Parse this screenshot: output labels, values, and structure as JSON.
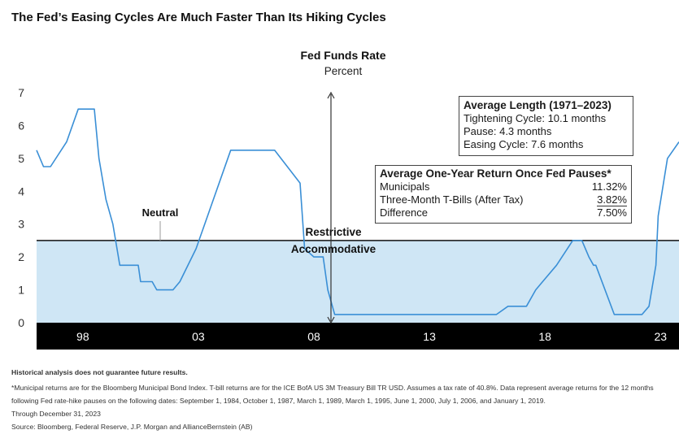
{
  "title": "The Fed’s Easing Cycles Are Much Faster Than Its Hiking Cycles",
  "chart_data": {
    "type": "area",
    "title": "Fed Funds Rate",
    "subtitle": "Percent",
    "xlim": [
      1996,
      2023.8
    ],
    "ylim": [
      0,
      7
    ],
    "yticks": [
      0,
      1,
      2,
      3,
      4,
      5,
      6,
      7
    ],
    "xtick_labels": [
      {
        "year": 1998,
        "label": "98"
      },
      {
        "year": 2003,
        "label": "03"
      },
      {
        "year": 2008,
        "label": "08"
      },
      {
        "year": 2013,
        "label": "13"
      },
      {
        "year": 2018,
        "label": "18"
      },
      {
        "year": 2023,
        "label": "23"
      }
    ],
    "neutral_level": 2.5,
    "labels": {
      "neutral": "Neutral",
      "restrictive": "Restrictive",
      "accommodative": "Accommodative"
    },
    "colors": {
      "line": "#3a8fd6",
      "accommodative_fill": "#cfe6f5",
      "axis_band": "#000000",
      "neutral_line": "#111111"
    },
    "series": [
      {
        "x": [
          1996.0,
          1996.3,
          1996.6,
          1997.3,
          1997.8,
          1998.5,
          1998.7,
          1999.0,
          1999.3,
          1999.6,
          1999.9,
          2000.4,
          2000.5,
          2001.0,
          2001.2,
          2001.7,
          2001.9,
          2002.2,
          2002.9,
          2003.4,
          2004.4,
          2005.0,
          2006.3,
          2007.4,
          2007.6,
          2008.0,
          2008.2,
          2008.4,
          2008.6,
          2008.9,
          2009.5,
          2015.9,
          2016.4,
          2016.9,
          2017.2,
          2017.6,
          2017.9,
          2018.5,
          2019.2,
          2019.6,
          2019.9,
          2020.1,
          2020.2,
          2021.0,
          2022.0,
          2022.2,
          2022.5,
          2022.8,
          2022.9,
          2023.3,
          2023.8
        ],
        "y": [
          5.25,
          4.75,
          4.75,
          5.5,
          6.5,
          6.5,
          5.0,
          3.75,
          3.0,
          1.75,
          1.75,
          1.75,
          1.25,
          1.25,
          1.0,
          1.0,
          1.0,
          1.25,
          2.25,
          3.25,
          5.25,
          5.25,
          5.25,
          4.25,
          2.25,
          2.0,
          2.0,
          2.0,
          1.0,
          0.25,
          0.25,
          0.25,
          0.5,
          0.5,
          0.5,
          1.0,
          1.25,
          1.75,
          2.5,
          2.5,
          2.0,
          1.75,
          1.75,
          0.25,
          0.25,
          0.25,
          0.5,
          1.75,
          3.25,
          5.0,
          5.5
        ]
      }
    ]
  },
  "box_length": {
    "heading": "Average Length (1971–2023)",
    "tightening": "Tightening Cycle: 10.1 months",
    "pause": "Pause: 4.3 months",
    "easing": "Easing Cycle: 7.6 months"
  },
  "box_return": {
    "heading": "Average One-Year Return Once Fed Pauses*",
    "rows": [
      {
        "label": "Municipals",
        "value": "11.32%"
      },
      {
        "label": "Three-Month T-Bills (After Tax)",
        "value": "3.82%"
      },
      {
        "label": "Difference",
        "value": "7.50%"
      }
    ]
  },
  "footer": {
    "disclaimer": "Historical analysis does not guarantee future results.",
    "note1": "*Municipal returns are for the Bloomberg Municipal Bond Index. T-bill returns are for the ICE BofA US 3M Treasury Bill TR USD. Assumes a tax rate of 40.8%. Data represent average returns for the 12 months",
    "note2": "following Fed rate-hike pauses on the following dates: September 1, 1984, October 1, 1987, March 1, 1989, March 1, 1995, June 1, 2000, July 1, 2006, and January 1, 2019.",
    "through": "Through December 31, 2023",
    "source": "Source: Bloomberg, Federal Reserve, J.P. Morgan and AllianceBernstein (AB)"
  }
}
